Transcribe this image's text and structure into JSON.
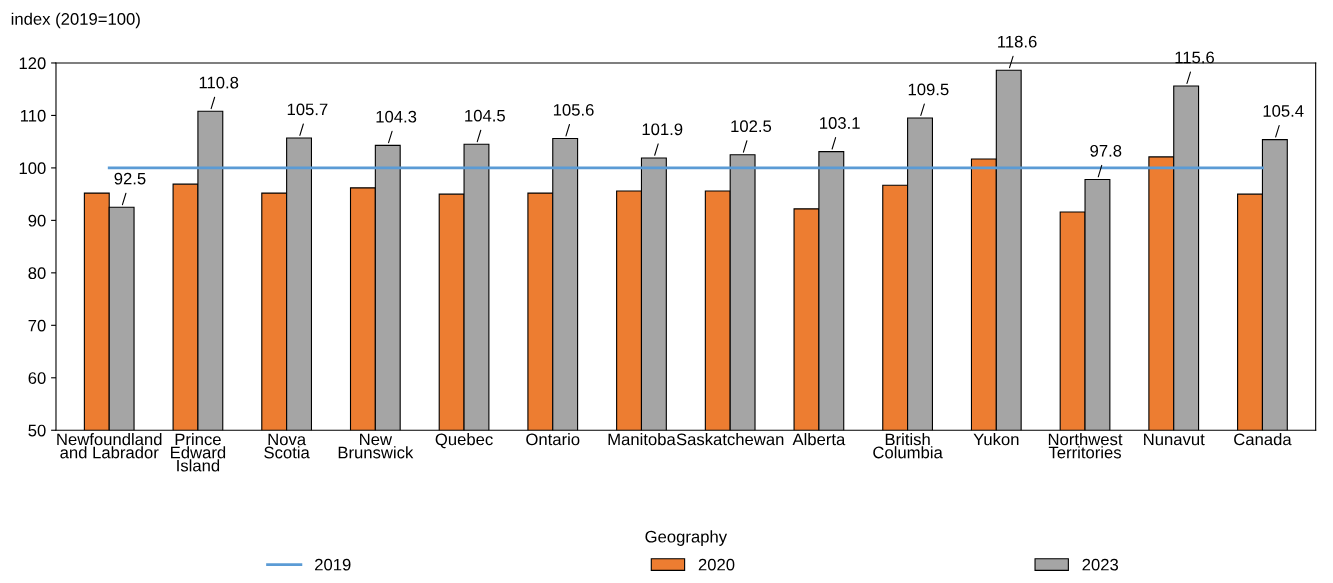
{
  "chart_data": {
    "type": "bar",
    "xlabel": "Geography",
    "ylabel": "index (2019=100)",
    "categories": [
      "Newfoundland\nand Labrador",
      "Prince\nEdward\nIsland",
      "Nova\nScotia",
      "New\nBrunswick",
      "Quebec",
      "Ontario",
      "Manitoba",
      "Saskatchewan",
      "Alberta",
      "British\nColumbia",
      "Yukon",
      "Northwest\nTerritories",
      "Nunavut",
      "Canada"
    ],
    "series": [
      {
        "name": "2019",
        "type": "line",
        "color": "#5b9bd5",
        "values": [
          100,
          100,
          100,
          100,
          100,
          100,
          100,
          100,
          100,
          100,
          100,
          100,
          100,
          100
        ]
      },
      {
        "name": "2020",
        "color": "#ed7d31",
        "values": [
          95.2,
          96.9,
          95.2,
          96.2,
          95.0,
          95.2,
          95.6,
          95.6,
          92.2,
          96.7,
          101.7,
          91.6,
          102.1,
          95.0
        ]
      },
      {
        "name": "2023",
        "color": "#a5a5a5",
        "values": [
          92.5,
          110.8,
          105.7,
          104.3,
          104.5,
          105.6,
          101.9,
          102.5,
          103.1,
          109.5,
          118.6,
          97.8,
          115.6,
          105.4
        ],
        "value_labels": [
          "92.5",
          "110.8",
          "105.7",
          "104.3",
          "104.5",
          "105.6",
          "101.9",
          "102.5",
          "103.1",
          "109.5",
          "118.6",
          "97.8",
          "115.6",
          "105.4"
        ]
      }
    ],
    "ylim": [
      50,
      120
    ],
    "yticks": [
      50,
      60,
      70,
      80,
      90,
      100,
      110,
      120
    ],
    "grid": false,
    "legend": "bottom"
  }
}
